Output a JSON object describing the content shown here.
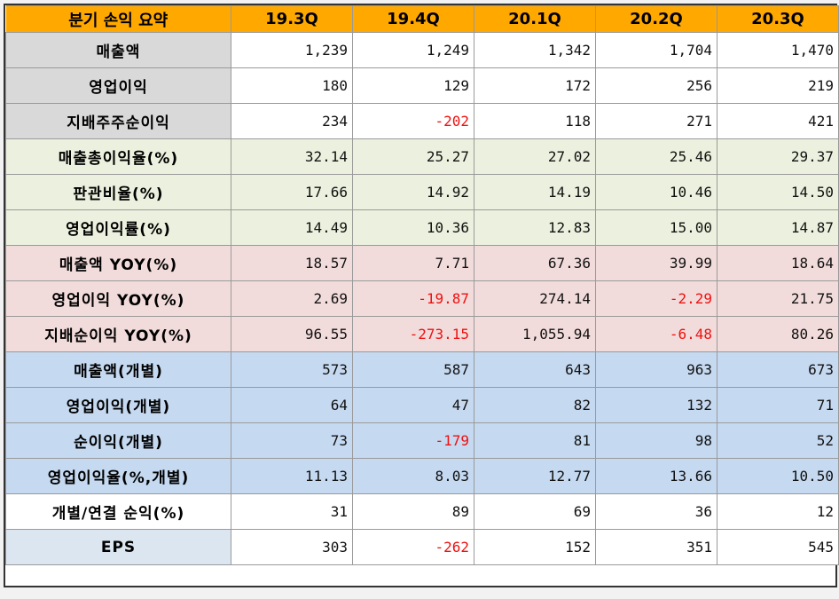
{
  "header": {
    "title": "분기 손익 요약",
    "periods": [
      "19.3Q",
      "19.4Q",
      "20.1Q",
      "20.2Q",
      "20.3Q"
    ]
  },
  "colors": {
    "header": "#ffa800",
    "gray": "#d9d9d9",
    "green": "#ebf1de",
    "red": "#f2dcdb",
    "blue": "#c5d9f1",
    "negative_text": "#ee1111"
  },
  "rows": [
    {
      "label": "매출액",
      "values": [
        "1,239",
        "1,249",
        "1,342",
        "1,704",
        "1,470"
      ]
    },
    {
      "label": "영업이익",
      "values": [
        "180",
        "129",
        "172",
        "256",
        "219"
      ]
    },
    {
      "label": "지배주주순이익",
      "values": [
        "234",
        "-202",
        "118",
        "271",
        "421"
      ]
    },
    {
      "label": "매출총이익율(%)",
      "values": [
        "32.14",
        "25.27",
        "27.02",
        "25.46",
        "29.37"
      ]
    },
    {
      "label": "판관비율(%)",
      "values": [
        "17.66",
        "14.92",
        "14.19",
        "10.46",
        "14.50"
      ]
    },
    {
      "label": "영업이익률(%)",
      "values": [
        "14.49",
        "10.36",
        "12.83",
        "15.00",
        "14.87"
      ]
    },
    {
      "label": "매출액 YOY(%)",
      "values": [
        "18.57",
        "7.71",
        "67.36",
        "39.99",
        "18.64"
      ]
    },
    {
      "label": "영업이익 YOY(%)",
      "values": [
        "2.69",
        "-19.87",
        "274.14",
        "-2.29",
        "21.75"
      ]
    },
    {
      "label": "지배순이익 YOY(%)",
      "values": [
        "96.55",
        "-273.15",
        "1,055.94",
        "-6.48",
        "80.26"
      ]
    },
    {
      "label": "매출액(개별)",
      "values": [
        "573",
        "587",
        "643",
        "963",
        "673"
      ]
    },
    {
      "label": "영업이익(개별)",
      "values": [
        "64",
        "47",
        "82",
        "132",
        "71"
      ]
    },
    {
      "label": "순이익(개별)",
      "values": [
        "73",
        "-179",
        "81",
        "98",
        "52"
      ]
    },
    {
      "label": "영업이익율(%,개별)",
      "values": [
        "11.13",
        "8.03",
        "12.77",
        "13.66",
        "10.50"
      ]
    },
    {
      "label": "개별/연결 순익(%)",
      "values": [
        "31",
        "89",
        "69",
        "36",
        "12"
      ]
    },
    {
      "label": "EPS",
      "values": [
        "303",
        "-262",
        "152",
        "351",
        "545"
      ]
    }
  ]
}
